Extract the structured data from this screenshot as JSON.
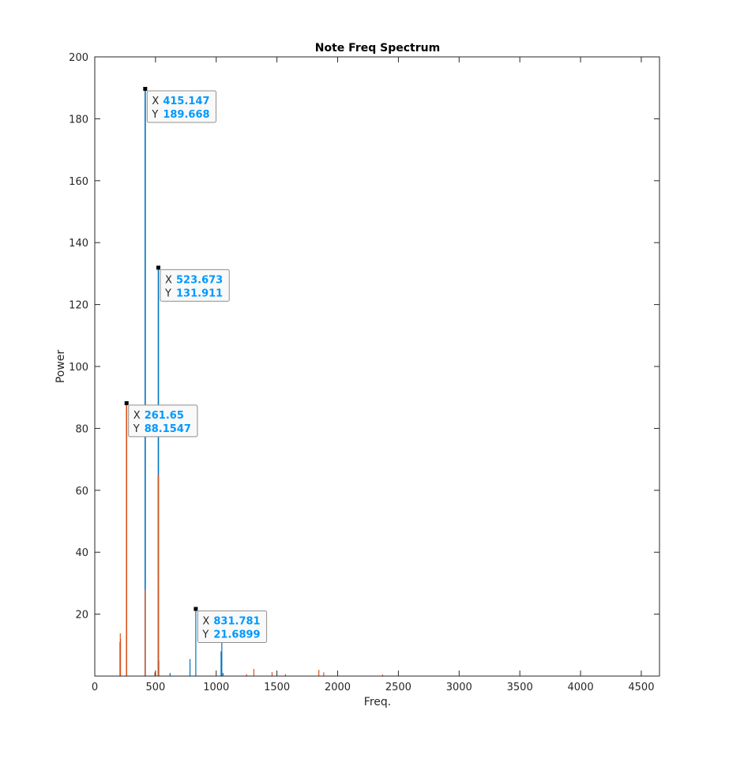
{
  "chart_data": {
    "type": "bar",
    "title": "Note Freq Spectrum",
    "xlabel": "Freq.",
    "ylabel": "Power",
    "xlim": [
      0,
      4650
    ],
    "ylim": [
      0,
      200
    ],
    "xticks": [
      "0",
      "500",
      "1000",
      "1500",
      "2000",
      "2500",
      "3000",
      "3500",
      "4000",
      "4500"
    ],
    "yticks": [
      "20",
      "40",
      "60",
      "80",
      "100",
      "120",
      "140",
      "160",
      "180",
      "200"
    ],
    "grid": false,
    "colors": {
      "series1": "#0072BD",
      "series2": "#D95319",
      "tip_value": "#0099FF"
    },
    "series": [
      {
        "points": [
          [
            415.147,
            189.668
          ],
          [
            523.673,
            131.911
          ],
          [
            831.781,
            21.6899
          ],
          [
            1046,
            17.5
          ],
          [
            1040,
            8
          ],
          [
            784,
            5.5
          ],
          [
            527,
            5
          ],
          [
            620,
            1
          ],
          [
            1056,
            1
          ]
        ]
      },
      {
        "points": [
          [
            261.65,
            88.1547
          ],
          [
            523,
            65
          ],
          [
            415,
            28
          ],
          [
            207,
            11
          ],
          [
            210,
            13.8
          ],
          [
            212,
            12
          ],
          [
            1310,
            2.3
          ],
          [
            1250,
            0.6
          ],
          [
            1460,
            1.3
          ],
          [
            1570,
            0.6
          ],
          [
            1845,
            2
          ],
          [
            1885,
            1.2
          ],
          [
            2370,
            0.5
          ],
          [
            495,
            1.2
          ]
        ]
      }
    ],
    "datatips": [
      {
        "x_label": "X",
        "y_label": "Y",
        "x": "415.147",
        "y": "189.668"
      },
      {
        "x_label": "X",
        "y_label": "Y",
        "x": "523.673",
        "y": "131.911"
      },
      {
        "x_label": "X",
        "y_label": "Y",
        "x": "261.65",
        "y": "88.1547"
      },
      {
        "x_label": "X",
        "y_label": "Y",
        "x": "831.781",
        "y": "21.6899"
      }
    ]
  }
}
